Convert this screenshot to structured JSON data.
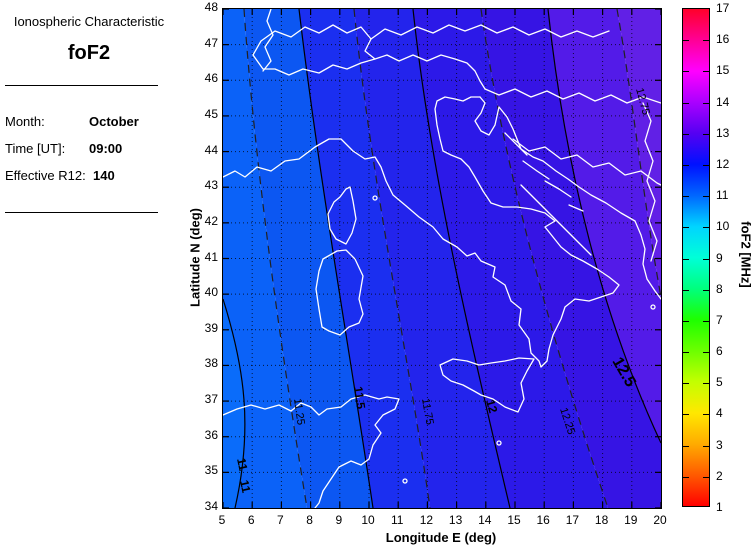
{
  "panel": {
    "title": "Ionospheric Characteristic",
    "characteristic": "foF2",
    "month_label": "Month:",
    "month_value": "October",
    "time_label": "Time [UT]:",
    "time_value": "09:00",
    "r12_label": "Effective R12:",
    "r12_value": "140"
  },
  "chart_data": {
    "type": "heatmap",
    "subtype": "filled-contour-geographic-map",
    "region": "Italy and central Mediterranean (coastlines of Italy, Sicily, Sardinia, Corsica, Tunisia, Balkans drawn in white)",
    "xlabel": "Longitude E (deg)",
    "ylabel": "Latitude N (deg)",
    "xlim": [
      5,
      20
    ],
    "ylim": [
      34,
      48
    ],
    "x_ticks": [
      5,
      6,
      7,
      8,
      9,
      10,
      11,
      12,
      13,
      14,
      15,
      16,
      17,
      18,
      19,
      20
    ],
    "y_ticks": [
      34,
      35,
      36,
      37,
      38,
      39,
      40,
      41,
      42,
      43,
      44,
      45,
      46,
      47,
      48
    ],
    "grid": true,
    "contours": [
      {
        "level": 11,
        "label": "11",
        "style": "solid",
        "emphasis": "bold"
      },
      {
        "level": 11.25,
        "label": "11.25",
        "style": "dashed",
        "emphasis": "normal"
      },
      {
        "level": 11.5,
        "label": "11.5",
        "style": "solid",
        "emphasis": "bold"
      },
      {
        "level": 11.75,
        "label": "11.75",
        "style": "dashed",
        "emphasis": "normal"
      },
      {
        "level": 12,
        "label": "12",
        "style": "solid",
        "emphasis": "bold"
      },
      {
        "level": 12.25,
        "label": "12.25",
        "style": "dashed",
        "emphasis": "normal"
      },
      {
        "level": 12.5,
        "label": "12.5",
        "style": "solid",
        "emphasis": "bold-large"
      },
      {
        "level": 12.75,
        "label": "12.75",
        "style": "dashed",
        "emphasis": "normal"
      }
    ],
    "bands": [
      {
        "range": "<=11.0",
        "color": "#0a6cfa"
      },
      {
        "range": "11.0-11.25",
        "color": "#0b62f8"
      },
      {
        "range": "11.25-11.5",
        "color": "#0c57f2"
      },
      {
        "range": "11.5-11.75",
        "color": "#1b2ff0"
      },
      {
        "range": "11.75-12.0",
        "color": "#2324ec"
      },
      {
        "range": "12.0-12.25",
        "color": "#2c19e8"
      },
      {
        "range": "12.25-12.5",
        "color": "#3614e4"
      },
      {
        "range": "12.5-12.75",
        "color": "#531be8"
      },
      {
        "range": ">=12.75",
        "color": "#6120e6"
      }
    ],
    "colorbar": {
      "label": "foF2 [MHz]",
      "lim": [
        1,
        17
      ],
      "ticks": [
        1,
        2,
        3,
        4,
        5,
        6,
        7,
        8,
        9,
        10,
        11,
        12,
        13,
        14,
        15,
        16,
        17
      ],
      "colormap": "hsv",
      "stops": [
        {
          "v": 1,
          "c": "#ff0000"
        },
        {
          "v": 2,
          "c": "#ff5a00"
        },
        {
          "v": 3,
          "c": "#ffab00"
        },
        {
          "v": 4,
          "c": "#ffe800"
        },
        {
          "v": 5,
          "c": "#c3ff00"
        },
        {
          "v": 6,
          "c": "#6cff00"
        },
        {
          "v": 7,
          "c": "#1eff00"
        },
        {
          "v": 8,
          "c": "#00ff7e"
        },
        {
          "v": 9,
          "c": "#00ffd8"
        },
        {
          "v": 10,
          "c": "#00d4ff"
        },
        {
          "v": 11,
          "c": "#0066ff"
        },
        {
          "v": 12,
          "c": "#0011ff"
        },
        {
          "v": 13,
          "c": "#5500f2"
        },
        {
          "v": 14,
          "c": "#aa00ff"
        },
        {
          "v": 15,
          "c": "#ff00ff"
        },
        {
          "v": 16,
          "c": "#ff0095"
        },
        {
          "v": 17,
          "c": "#ff002a"
        }
      ]
    }
  }
}
